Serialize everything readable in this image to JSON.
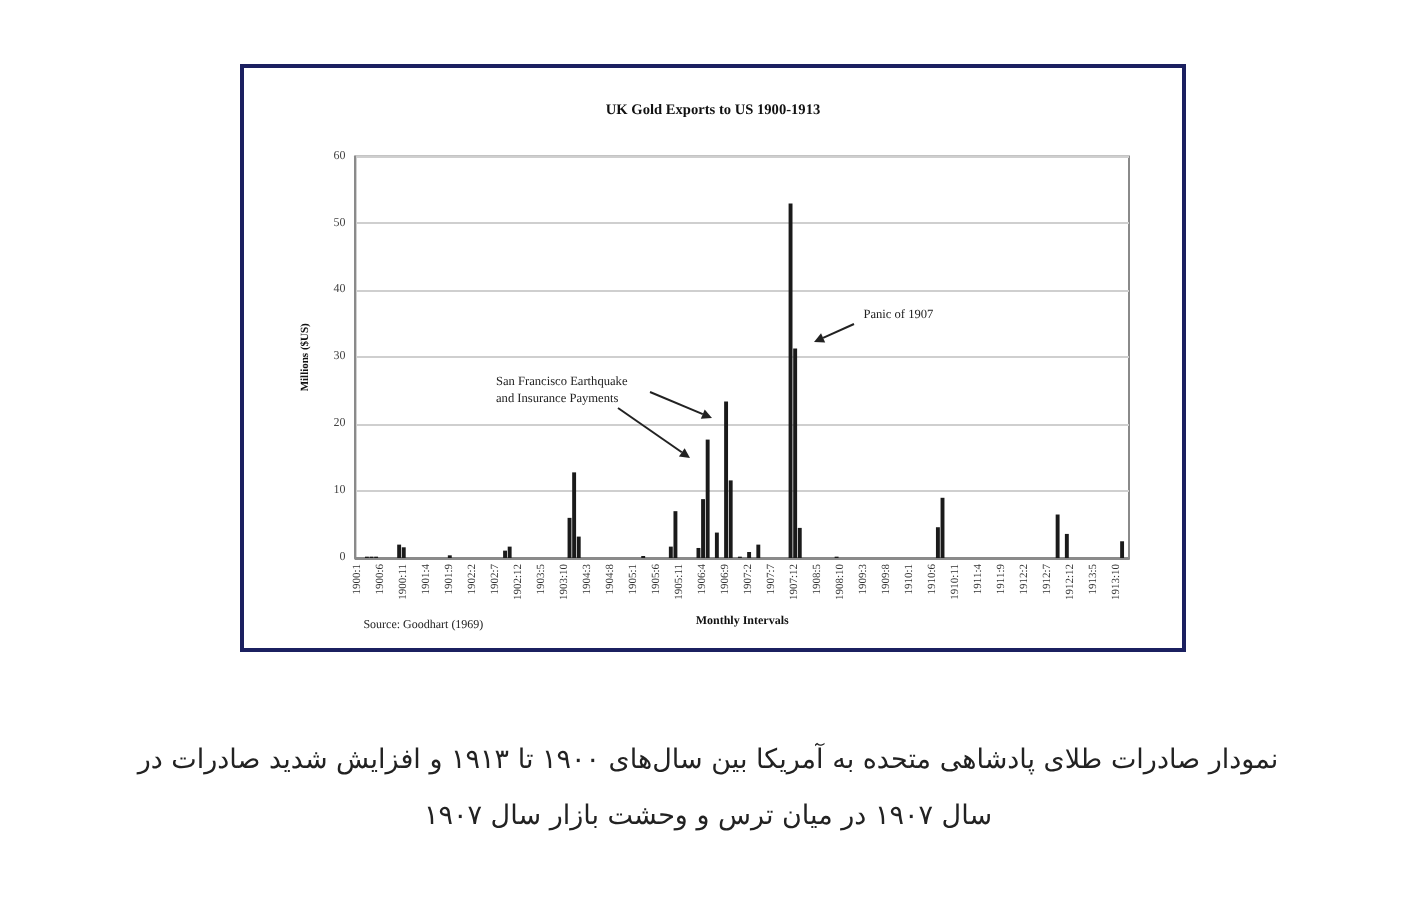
{
  "chart_data": {
    "type": "bar",
    "title": "UK Gold Exports to US 1900-1913",
    "xlabel": "Monthly Intervals",
    "ylabel": "Millions ($US)",
    "categories": [
      "1900:1",
      null,
      null,
      null,
      null,
      "1900:6",
      null,
      null,
      null,
      null,
      "1900:11",
      null,
      null,
      null,
      null,
      "1901:4",
      null,
      null,
      null,
      null,
      "1901:9",
      null,
      null,
      null,
      null,
      "1902:2",
      null,
      null,
      null,
      null,
      "1902:7",
      null,
      null,
      null,
      null,
      "1902:12",
      null,
      null,
      null,
      null,
      "1903:5",
      null,
      null,
      null,
      null,
      "1903:10",
      null,
      null,
      null,
      null,
      "1904:3",
      null,
      null,
      null,
      null,
      "1904:8",
      null,
      null,
      null,
      null,
      "1905:1",
      null,
      null,
      null,
      null,
      "1905:6",
      null,
      null,
      null,
      null,
      "1905:11",
      null,
      null,
      null,
      null,
      "1906:4",
      null,
      null,
      null,
      null,
      "1906:9",
      null,
      null,
      null,
      null,
      "1907:2",
      null,
      null,
      null,
      null,
      "1907:7",
      null,
      null,
      null,
      null,
      "1907:12",
      null,
      null,
      null,
      null,
      "1908:5",
      null,
      null,
      null,
      null,
      "1908:10",
      null,
      null,
      null,
      null,
      "1909:3",
      null,
      null,
      null,
      null,
      "1909:8",
      null,
      null,
      null,
      null,
      "1910:1",
      null,
      null,
      null,
      null,
      "1910:6",
      null,
      null,
      null,
      null,
      "1910:11",
      null,
      null,
      null,
      null,
      "1911:4",
      null,
      null,
      null,
      null,
      "1911:9",
      null,
      null,
      null,
      null,
      "1912:2",
      null,
      null,
      null,
      null,
      "1912:7",
      null,
      null,
      null,
      null,
      "1912:12",
      null,
      null,
      null,
      null,
      "1913:5",
      null,
      null,
      null,
      null,
      "1913:10",
      null,
      null
    ],
    "values": [
      0,
      0,
      0.2,
      0.2,
      0.2,
      0,
      0,
      0,
      0,
      2.0,
      1.6,
      0,
      0,
      0,
      0,
      0,
      0,
      0,
      0,
      0,
      0.4,
      0,
      0,
      0,
      0,
      0,
      0,
      0,
      0,
      0,
      0,
      0,
      1.1,
      1.7,
      0,
      0,
      0,
      0,
      0,
      0,
      0,
      0,
      0,
      0,
      0,
      0,
      6.0,
      12.8,
      3.2,
      0,
      0,
      0,
      0,
      0,
      0,
      0,
      0,
      0,
      0,
      0,
      0,
      0,
      0.3,
      0,
      0,
      0,
      0,
      0,
      1.7,
      7.0,
      0,
      0,
      0,
      0,
      1.5,
      8.8,
      17.7,
      0,
      3.8,
      0,
      23.4,
      11.6,
      0,
      0.2,
      0,
      0.9,
      0,
      2.0,
      0,
      0,
      0,
      0,
      0,
      0,
      53.0,
      31.3,
      4.5,
      0,
      0,
      0,
      0,
      0,
      0,
      0,
      0.2,
      0,
      0,
      0,
      0,
      0,
      0,
      0,
      0,
      0,
      0,
      0,
      0,
      0,
      0,
      0,
      0,
      0,
      0,
      0,
      0,
      0,
      4.6,
      9.0,
      0,
      0,
      0,
      0,
      0,
      0,
      0,
      0,
      0,
      0,
      0,
      0,
      0,
      0,
      0,
      0,
      0,
      0,
      0,
      0,
      0,
      0,
      0,
      0,
      6.5,
      0,
      3.6,
      0,
      0,
      0,
      0,
      0,
      0,
      0,
      0,
      0,
      0,
      0,
      2.5,
      0
    ],
    "color": "#1a1a1a",
    "ylim": [
      0,
      60
    ],
    "yticks": [
      0,
      10,
      20,
      30,
      40,
      50,
      60
    ],
    "grid": "y",
    "annotations": [
      "San Francisco Earthquake and Insurance Payments",
      "Panic of 1907",
      "Source: Goodhart (1969)",
      "نمودار صادرات طلای پادشاهی متحده به آمریکا بین سال‌های ۱۹۰۰ تا ۱۹۱۳ و افزایش شدید صادرات در سال ۱۹۰۷ در میان ترس و وحشت بازار سال ۱۹۰۷"
    ]
  }
}
